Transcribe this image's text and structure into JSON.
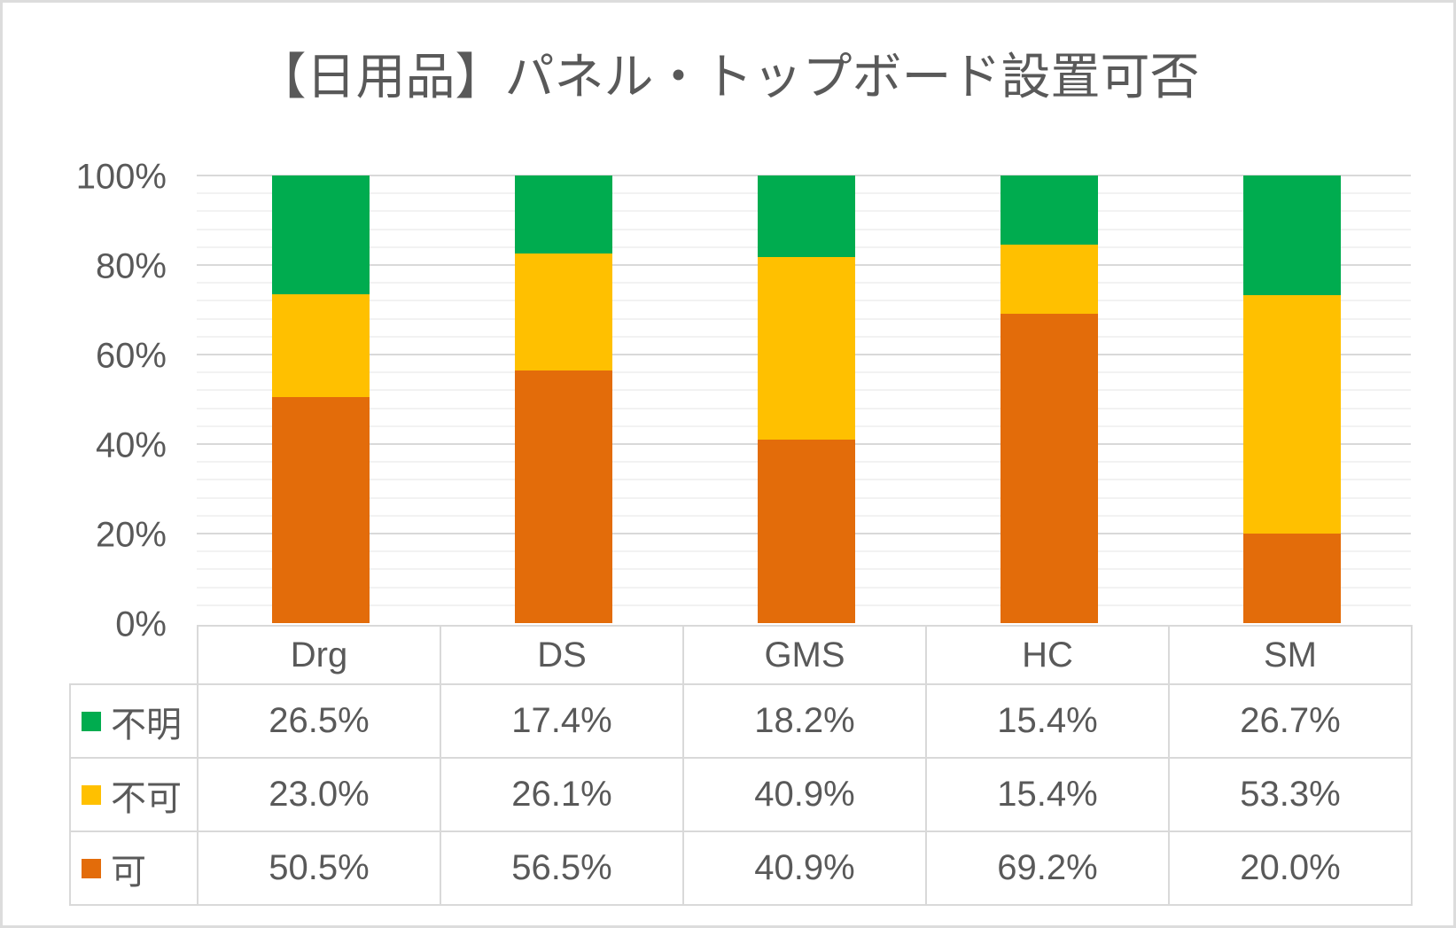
{
  "title": "【日用品】パネル・トップボード設置可否",
  "colors": {
    "green": "#00AC4F",
    "yellow": "#FFC000",
    "orange": "#E36C0A",
    "text": "#595959",
    "grid_major": "#D9D9D9",
    "grid_minor": "#F2F2F2",
    "table_border": "#D9D9D9",
    "frame": "#DCDCDC"
  },
  "y_axis": {
    "ticks": [
      "100%",
      "80%",
      "60%",
      "40%",
      "20%",
      "0%"
    ],
    "min": 0,
    "max": 100,
    "major_unit": 20,
    "minor_unit": 4
  },
  "chart_data": {
    "type": "bar",
    "stacked": true,
    "percent_stacked": true,
    "title": "【日用品】パネル・トップボード設置可否",
    "categories": [
      "Drg",
      "DS",
      "GMS",
      "HC",
      "SM"
    ],
    "series": [
      {
        "name": "可",
        "key": "allowed",
        "color": "#E36C0A",
        "values": [
          50.5,
          56.5,
          40.9,
          69.2,
          20.0
        ]
      },
      {
        "name": "不可",
        "key": "not-allowed",
        "color": "#FFC000",
        "values": [
          23.0,
          26.1,
          40.9,
          15.4,
          53.3
        ]
      },
      {
        "name": "不明",
        "key": "unknown",
        "color": "#00AC4F",
        "values": [
          26.5,
          17.4,
          18.2,
          15.4,
          26.7
        ]
      }
    ],
    "xlabel": "",
    "ylabel": "",
    "ylim": [
      0,
      100
    ],
    "grid": "major-and-minor-horizontal",
    "legend_position": "data-table-left-column"
  },
  "table": {
    "headers": [
      "Drg",
      "DS",
      "GMS",
      "HC",
      "SM"
    ],
    "rows": [
      {
        "legend": "不明",
        "color": "#00AC4F",
        "values": [
          "26.5%",
          "17.4%",
          "18.2%",
          "15.4%",
          "26.7%"
        ]
      },
      {
        "legend": "不可",
        "color": "#FFC000",
        "values": [
          "23.0%",
          "26.1%",
          "40.9%",
          "15.4%",
          "53.3%"
        ]
      },
      {
        "legend": "可",
        "color": "#E36C0A",
        "values": [
          "50.5%",
          "56.5%",
          "40.9%",
          "69.2%",
          "20.0%"
        ]
      }
    ]
  }
}
